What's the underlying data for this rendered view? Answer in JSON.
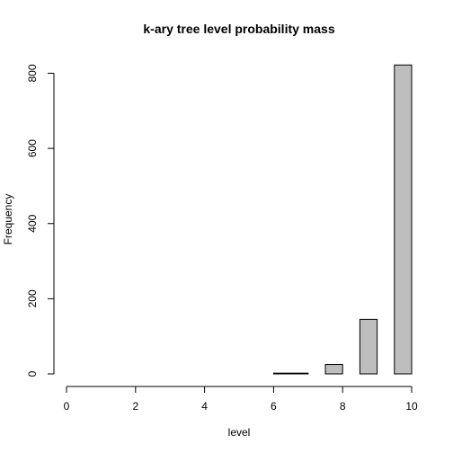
{
  "chart_data": {
    "type": "bar",
    "title": "k-ary tree level probability mass",
    "xlabel": "level",
    "ylabel": "Frequency",
    "xlim": [
      0,
      10
    ],
    "ylim": [
      0,
      820
    ],
    "x_ticks": [
      0,
      2,
      4,
      6,
      8,
      10
    ],
    "y_ticks": [
      0,
      200,
      400,
      600,
      800
    ],
    "bars": [
      {
        "x0": 6.0,
        "x1": 7.0,
        "value": 2
      },
      {
        "x0": 7.5,
        "x1": 8.0,
        "value": 25
      },
      {
        "x0": 8.5,
        "x1": 9.0,
        "value": 145
      },
      {
        "x0": 9.5,
        "x1": 10.0,
        "value": 822
      }
    ],
    "colors": {
      "bar_fill": "#bebebe",
      "bar_stroke": "#000000"
    },
    "grid": false,
    "legend": "none"
  }
}
